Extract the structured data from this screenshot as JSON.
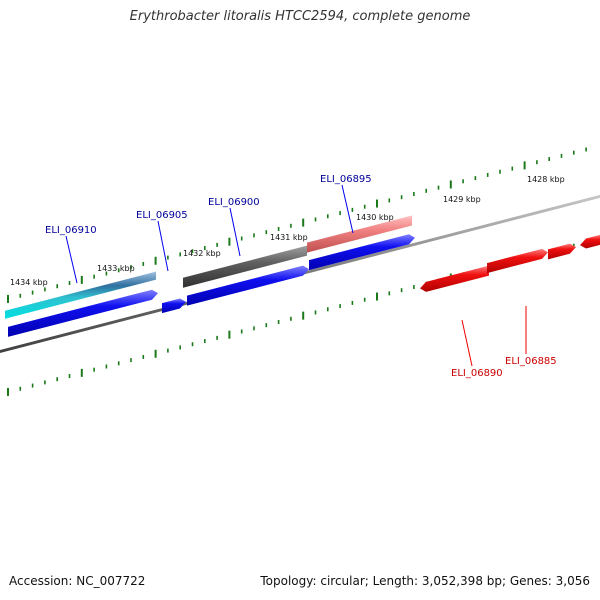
{
  "title": "Erythrobacter litoralis HTCC2594, complete genome",
  "footer": {
    "accession": "Accession: NC_007722",
    "stats": "Topology: circular; Length: 3,052,398 bp; Genes: 3,056"
  },
  "colors": {
    "forward": "#0000ee",
    "reverse": "#ee0000",
    "tick": "#1a7a1a",
    "backbone": "#7a7a7a",
    "forward_label": "#000099",
    "reverse_label": "#cc0000"
  },
  "scale_labels": [
    "1434 kbp",
    "1433 kbp",
    "1432 kbp",
    "1431 kbp",
    "1430 kbp",
    "1429 kbp",
    "1428 kbp"
  ],
  "gene_labels": [
    "ELI_06910",
    "ELI_06905",
    "ELI_06900",
    "ELI_06895",
    "ELI_06890",
    "ELI_06885"
  ]
}
